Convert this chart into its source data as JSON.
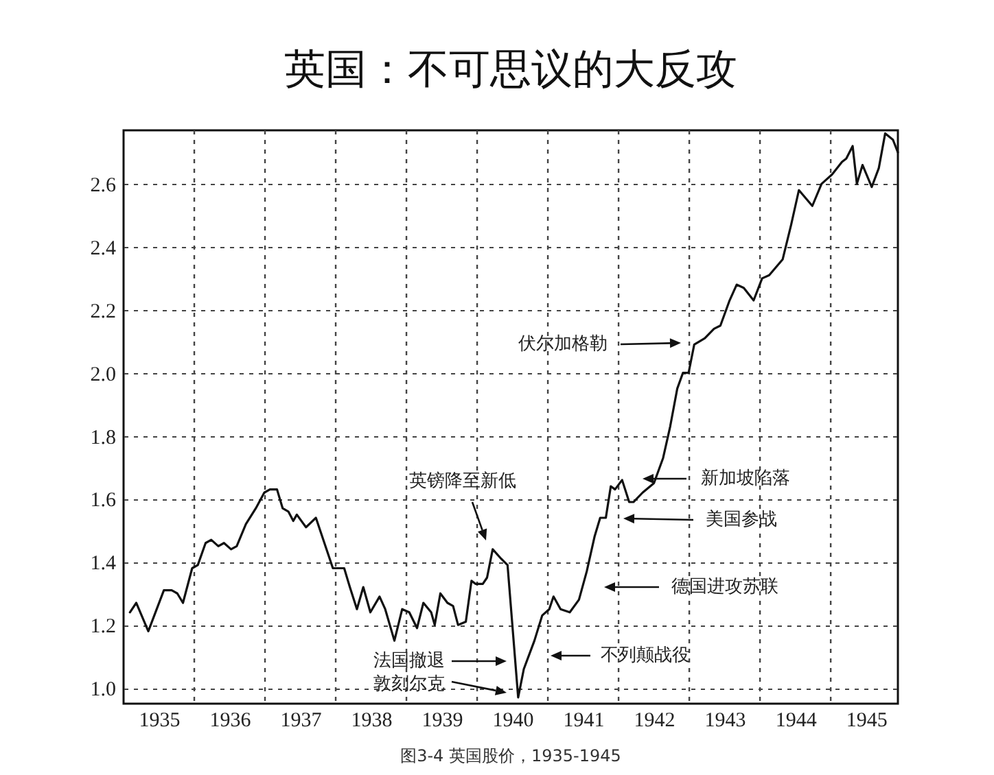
{
  "chart_data": {
    "type": "line",
    "title": "英国：不可思议的大反攻",
    "x": [
      1935.09,
      1935.18,
      1935.35,
      1935.57,
      1935.68,
      1935.76,
      1935.84,
      1935.97,
      1936.05,
      1936.16,
      1936.24,
      1936.34,
      1936.42,
      1936.52,
      1936.6,
      1936.73,
      1936.87,
      1936.99,
      1937.07,
      1937.17,
      1937.25,
      1937.33,
      1937.4,
      1937.45,
      1937.58,
      1937.72,
      1937.84,
      1937.96,
      1938.03,
      1938.12,
      1938.2,
      1938.3,
      1938.39,
      1938.49,
      1938.62,
      1938.7,
      1938.83,
      1938.94,
      1939.04,
      1939.15,
      1939.24,
      1939.35,
      1939.4,
      1939.48,
      1939.58,
      1939.66,
      1939.73,
      1939.84,
      1939.92,
      1939.98,
      1940.08,
      1940.14,
      1940.22,
      1940.34,
      1940.43,
      1940.58,
      1940.66,
      1940.81,
      1940.92,
      1941.02,
      1941.08,
      1941.18,
      1941.31,
      1941.44,
      1941.55,
      1941.66,
      1941.74,
      1941.82,
      1941.89,
      1941.95,
      1942.05,
      1942.15,
      1942.21,
      1942.34,
      1942.5,
      1942.63,
      1942.73,
      1942.83,
      1942.91,
      1942.99,
      1943.07,
      1943.22,
      1943.35,
      1943.44,
      1943.57,
      1943.67,
      1943.77,
      1943.91,
      1944.03,
      1944.13,
      1944.32,
      1944.44,
      1944.55,
      1944.74,
      1944.87,
      1945.02,
      1945.16,
      1945.22,
      1945.31,
      1945.37,
      1945.45,
      1945.58,
      1945.68,
      1945.77,
      1945.88,
      1945.95
    ],
    "series": [
      {
        "color": "#111111",
        "values": [
          1.24,
          1.27,
          1.18,
          1.31,
          1.31,
          1.3,
          1.27,
          1.38,
          1.39,
          1.46,
          1.47,
          1.45,
          1.46,
          1.44,
          1.45,
          1.52,
          1.57,
          1.62,
          1.63,
          1.63,
          1.57,
          1.56,
          1.53,
          1.55,
          1.51,
          1.54,
          1.46,
          1.38,
          1.38,
          1.38,
          1.32,
          1.25,
          1.32,
          1.24,
          1.29,
          1.25,
          1.15,
          1.25,
          1.24,
          1.19,
          1.27,
          1.24,
          1.2,
          1.3,
          1.27,
          1.26,
          1.2,
          1.21,
          1.34,
          1.33,
          1.33,
          1.35,
          1.44,
          1.41,
          1.39,
          0.97,
          1.06,
          1.15,
          1.23,
          1.25,
          1.29,
          1.25,
          1.24,
          1.28,
          1.37,
          1.48,
          1.54,
          1.54,
          1.64,
          1.63,
          1.66,
          1.59,
          1.59,
          1.62,
          1.65,
          1.73,
          1.83,
          1.95,
          2.0,
          2.0,
          2.09,
          2.11,
          2.14,
          2.15,
          2.23,
          2.28,
          2.27,
          2.23,
          2.3,
          2.31,
          2.36,
          2.47,
          2.58,
          2.53,
          2.6,
          2.63,
          2.67,
          2.68,
          2.72,
          2.6,
          2.66,
          2.59,
          2.65,
          2.76,
          2.74,
          2.7
        ]
      }
    ],
    "xlim": [
      1935,
      1945.95
    ],
    "xticks": [
      {
        "value": 1935.5,
        "label": "1935"
      },
      {
        "value": 1936.5,
        "label": "1936"
      },
      {
        "value": 1937.5,
        "label": "1937"
      },
      {
        "value": 1938.5,
        "label": "1938"
      },
      {
        "value": 1939.5,
        "label": "1939"
      },
      {
        "value": 1940.5,
        "label": "1940"
      },
      {
        "value": 1941.5,
        "label": "1941"
      },
      {
        "value": 1942.5,
        "label": "1942"
      },
      {
        "value": 1943.5,
        "label": "1943"
      },
      {
        "value": 1944.5,
        "label": "1944"
      },
      {
        "value": 1945.5,
        "label": "1945"
      },
      {
        "value": 1936,
        "label": null
      },
      {
        "value": 1937,
        "label": null
      },
      {
        "value": 1938,
        "label": null
      },
      {
        "value": 1939,
        "label": null
      },
      {
        "value": 1940,
        "label": null
      },
      {
        "value": 1941,
        "label": null
      },
      {
        "value": 1942,
        "label": null
      },
      {
        "value": 1943,
        "label": null
      },
      {
        "value": 1944,
        "label": null
      },
      {
        "value": 1945,
        "label": null
      }
    ],
    "ylim": [
      0.95,
      2.77
    ],
    "yticks": [
      {
        "value": 1,
        "label": "1.0"
      },
      1.2,
      1.4,
      1.6,
      1.8,
      {
        "value": 2,
        "label": "2.0"
      },
      2.2,
      2.4,
      2.6
    ],
    "grid": true,
    "line_style": "solid",
    "annotations": [
      "英镑降至新低",
      "法国撤退",
      "敦刻尔克",
      "不列颠战役",
      "德国进攻苏联",
      "美国参战",
      "新加坡陷落",
      "伏尔加格勒",
      "图3-4 英国股价，1935-1945"
    ]
  }
}
